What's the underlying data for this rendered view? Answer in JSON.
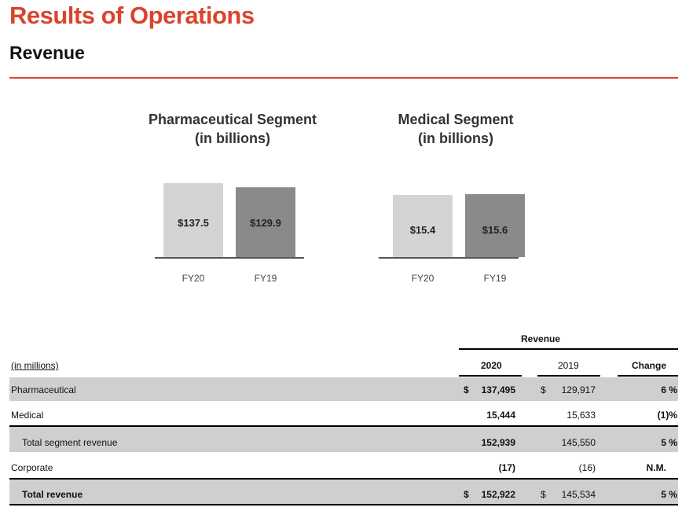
{
  "header": {
    "title": "Results of Operations",
    "subtitle": "Revenue"
  },
  "chart_data": [
    {
      "type": "bar",
      "title": "Pharmaceutical Segment",
      "subtitle": "(in billions)",
      "categories": [
        "FY20",
        "FY19"
      ],
      "values": [
        137.5,
        129.9
      ],
      "labels": [
        "$137.5",
        "$129.9"
      ],
      "colors": [
        "#d4d4d4",
        "#8a8a8a"
      ]
    },
    {
      "type": "bar",
      "title": "Medical Segment",
      "subtitle": "(in billions)",
      "categories": [
        "FY20",
        "FY19"
      ],
      "values": [
        15.4,
        15.6
      ],
      "labels": [
        "$15.4",
        "$15.6"
      ],
      "colors": [
        "#d4d4d4",
        "#8a8a8a"
      ]
    }
  ],
  "table": {
    "group_header": "Revenue",
    "units_label": "(in millions)",
    "col_2020": "2020",
    "col_2019": "2019",
    "col_change": "Change",
    "currency": "$",
    "rows": [
      {
        "label": "Pharmaceutical",
        "v2020": "137,495",
        "v2019": "129,917",
        "change": "6 %"
      },
      {
        "label": "Medical",
        "v2020": "15,444",
        "v2019": "15,633",
        "change": "(1)%"
      },
      {
        "label": "Total segment revenue",
        "v2020": "152,939",
        "v2019": "145,550",
        "change": "5 %"
      },
      {
        "label": "Corporate",
        "v2020": "(17)",
        "v2019": "(16)",
        "change": "N.M."
      },
      {
        "label": "Total revenue",
        "v2020": "152,922",
        "v2019": "145,534",
        "change": "5 %"
      }
    ]
  }
}
